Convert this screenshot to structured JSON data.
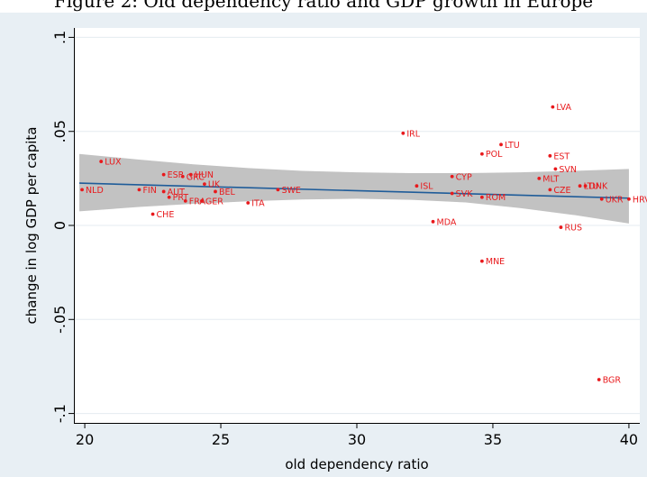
{
  "figure_title": "Figure 2: Old dependency ratio and GDP growth in Europe",
  "chart_data": {
    "type": "scatter",
    "title": "",
    "xlabel": "old dependency ratio",
    "ylabel": "change in log GDP per capita",
    "xlim": [
      19.6,
      40.4
    ],
    "ylim": [
      -0.105,
      0.105
    ],
    "xticks": [
      20,
      25,
      30,
      35,
      40
    ],
    "xtick_labels": [
      "20",
      "25",
      "30",
      "35",
      "40"
    ],
    "yticks": [
      -0.1,
      -0.05,
      0,
      0.05,
      0.1
    ],
    "ytick_labels": [
      "-.1",
      "-.05",
      "0",
      ".05",
      ".1"
    ],
    "grid": "horizontal",
    "legend": "none",
    "colors": {
      "points": "#e8191c",
      "fit": "#1f5c99",
      "ci": "#c2c2c2",
      "plot_bg": "#ffffff",
      "frame_bg": "#e8eff4",
      "grid": "#e5ebf0"
    },
    "points": [
      {
        "label": "NLD",
        "x": 19.9,
        "y": 0.019
      },
      {
        "label": "LUX",
        "x": 20.6,
        "y": 0.034
      },
      {
        "label": "FIN",
        "x": 22.0,
        "y": 0.019
      },
      {
        "label": "CHE",
        "x": 22.5,
        "y": 0.006
      },
      {
        "label": "ESP",
        "x": 22.9,
        "y": 0.027
      },
      {
        "label": "AUT",
        "x": 22.9,
        "y": 0.018
      },
      {
        "label": "PRT",
        "x": 23.1,
        "y": 0.015
      },
      {
        "label": "GRC",
        "x": 23.6,
        "y": 0.026
      },
      {
        "label": "HUN",
        "x": 23.9,
        "y": 0.027
      },
      {
        "label": "FRA",
        "x": 23.7,
        "y": 0.013
      },
      {
        "label": "GER",
        "x": 24.3,
        "y": 0.013
      },
      {
        "label": "UK",
        "x": 24.4,
        "y": 0.022
      },
      {
        "label": "BEL",
        "x": 24.8,
        "y": 0.018
      },
      {
        "label": "ITA",
        "x": 26.0,
        "y": 0.012
      },
      {
        "label": "SWE",
        "x": 27.1,
        "y": 0.019
      },
      {
        "label": "IRL",
        "x": 31.7,
        "y": 0.049
      },
      {
        "label": "ISL",
        "x": 32.2,
        "y": 0.021
      },
      {
        "label": "MDA",
        "x": 32.8,
        "y": 0.002
      },
      {
        "label": "CYP",
        "x": 33.5,
        "y": 0.026
      },
      {
        "label": "SVK",
        "x": 33.5,
        "y": 0.017
      },
      {
        "label": "POL",
        "x": 34.6,
        "y": 0.038
      },
      {
        "label": "ROM",
        "x": 34.6,
        "y": 0.015
      },
      {
        "label": "MNE",
        "x": 34.6,
        "y": -0.019
      },
      {
        "label": "LTU",
        "x": 35.3,
        "y": 0.043
      },
      {
        "label": "MLT",
        "x": 36.7,
        "y": 0.025
      },
      {
        "label": "LVA",
        "x": 37.2,
        "y": 0.063
      },
      {
        "label": "EST",
        "x": 37.1,
        "y": 0.037
      },
      {
        "label": "SVN",
        "x": 37.3,
        "y": 0.03
      },
      {
        "label": "CZE",
        "x": 37.1,
        "y": 0.019
      },
      {
        "label": "RUS",
        "x": 37.5,
        "y": -0.001
      },
      {
        "label": "LTU",
        "x": 38.2,
        "y": 0.021
      },
      {
        "label": "DNK",
        "x": 38.4,
        "y": 0.021
      },
      {
        "label": "UKR",
        "x": 39.0,
        "y": 0.014
      },
      {
        "label": "HRV",
        "x": 40.0,
        "y": 0.014
      },
      {
        "label": "BGR",
        "x": 38.9,
        "y": -0.082
      }
    ],
    "fit_line": {
      "x": [
        19.8,
        40.0
      ],
      "y": [
        0.0225,
        0.0145
      ]
    },
    "confidence_band": {
      "x": [
        19.8,
        22,
        24,
        26,
        28,
        30,
        32,
        34,
        36,
        38,
        40.0
      ],
      "upper": [
        0.038,
        0.035,
        0.0325,
        0.0305,
        0.029,
        0.0282,
        0.0278,
        0.0278,
        0.0282,
        0.029,
        0.03
      ],
      "lower": [
        0.0075,
        0.0098,
        0.0115,
        0.0128,
        0.0138,
        0.0142,
        0.0136,
        0.0122,
        0.0092,
        0.0055,
        0.001
      ]
    }
  }
}
